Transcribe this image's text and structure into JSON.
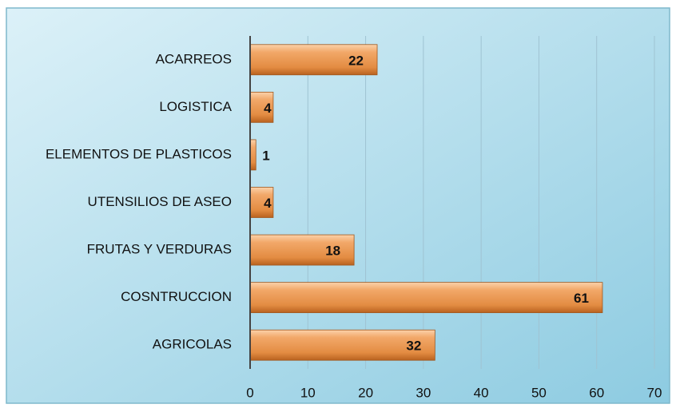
{
  "chart_data": {
    "type": "bar",
    "orientation": "horizontal",
    "categories": [
      "ACARREOS",
      "LOGISTICA",
      "ELEMENTOS DE PLASTICOS",
      "UTENSILIOS DE ASEO",
      "FRUTAS Y VERDURAS",
      "COSNTRUCCION",
      "AGRICOLAS"
    ],
    "values": [
      22,
      4,
      1,
      4,
      18,
      61,
      32
    ],
    "color": "#e8944a",
    "xlim": [
      0,
      70
    ],
    "xticks": [
      0,
      10,
      20,
      30,
      40,
      50,
      60,
      70
    ],
    "grid": true
  }
}
